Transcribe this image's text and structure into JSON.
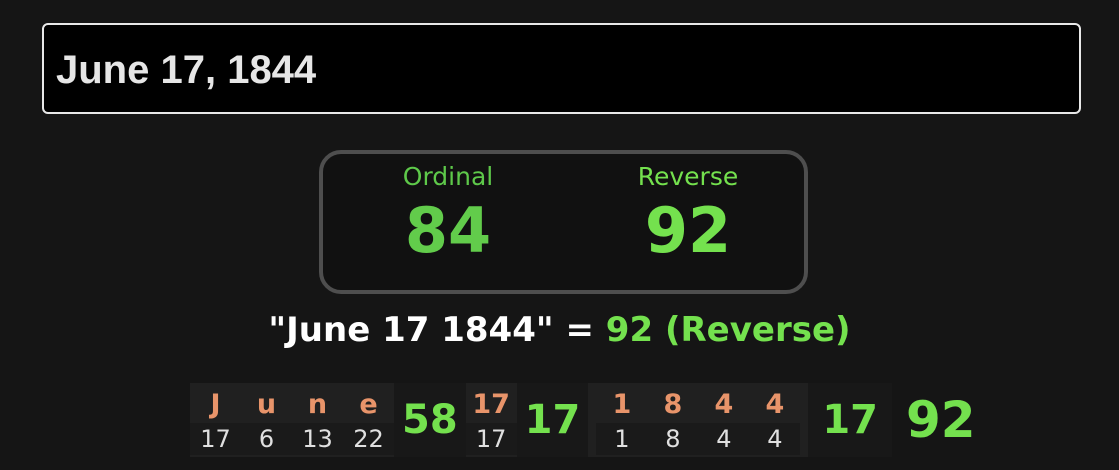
{
  "input": {
    "value": "June 17, 1844"
  },
  "results": [
    {
      "label": "Ordinal",
      "value": "84"
    },
    {
      "label": "Reverse",
      "value": "92"
    }
  ],
  "summary": {
    "phrase": "\"June 17 1844\"",
    "equals": "=",
    "value": "92",
    "cipher": "(Reverse)"
  },
  "breakdown": {
    "month": [
      {
        "ch": "J",
        "v": "17"
      },
      {
        "ch": "u",
        "v": "6"
      },
      {
        "ch": "n",
        "v": "13"
      },
      {
        "ch": "e",
        "v": "22"
      }
    ],
    "month_sum": "58",
    "day": [
      {
        "ch": "17",
        "v": "17"
      }
    ],
    "day_sum": "17",
    "year": [
      {
        "ch": "1",
        "v": "1"
      },
      {
        "ch": "8",
        "v": "8"
      },
      {
        "ch": "4",
        "v": "4"
      },
      {
        "ch": "4",
        "v": "4"
      }
    ],
    "year_sum": "17",
    "total": "92"
  },
  "colors": {
    "green": "#74e14e",
    "orange": "#e8946a"
  }
}
